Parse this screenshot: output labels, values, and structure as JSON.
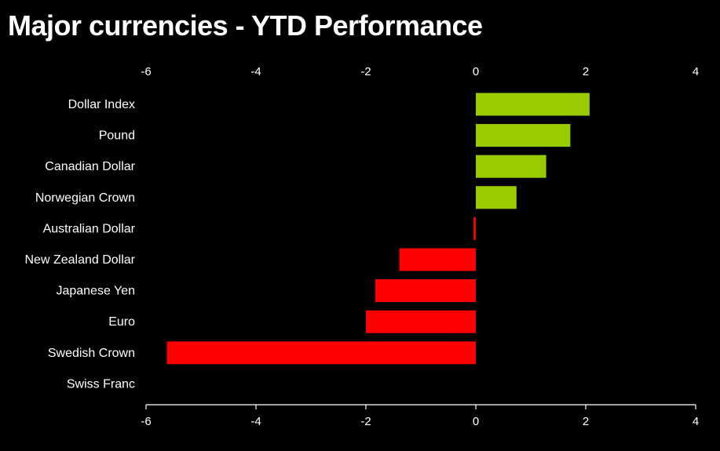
{
  "chart_data": {
    "type": "bar",
    "orientation": "horizontal",
    "title": "Major currencies - YTD Performance",
    "xlabel": "",
    "ylabel": "",
    "xlim": [
      -6,
      4
    ],
    "xticks": [
      -6,
      -4,
      -2,
      0,
      2,
      4
    ],
    "grid": false,
    "legend": "none",
    "categories": [
      "Dollar Index",
      "Pound",
      "Canadian Dollar",
      "Norwegian Crown",
      "Australian Dollar",
      "New Zealand Dollar",
      "Japanese Yen",
      "Euro",
      "Swedish Crown",
      "Swiss Franc"
    ],
    "values": [
      2.07,
      1.72,
      1.28,
      0.74,
      -0.04,
      -1.39,
      -1.83,
      -2.0,
      -5.62,
      0
    ],
    "colors": {
      "positive": "#99cc00",
      "negative": "#ff0000",
      "background": "#000000",
      "text": "#ffffff",
      "axis": "#ffffff"
    }
  }
}
